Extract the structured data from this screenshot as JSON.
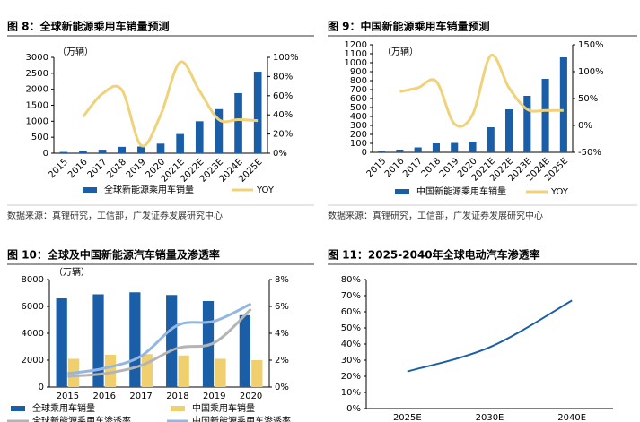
{
  "chart_data": [
    {
      "type": "bar",
      "title": "图 8：全球新能源乘用车销量预测",
      "unit": "（万辆）",
      "categories": [
        "2015",
        "2016",
        "2017",
        "2018",
        "2019",
        "2020",
        "2021E",
        "2022E",
        "2023E",
        "2024E",
        "2025E"
      ],
      "series": [
        {
          "name": "全球新能源乘用车销量",
          "type": "bar",
          "color": "#1b5ea8",
          "values": [
            40,
            70,
            110,
            200,
            210,
            300,
            600,
            1000,
            1380,
            1880,
            2550
          ]
        },
        {
          "name": "YOY",
          "type": "line",
          "axis": "y2",
          "color": "#f0d27a",
          "values": [
            null,
            38,
            62,
            66,
            8,
            40,
            95,
            65,
            35,
            35,
            34
          ]
        }
      ],
      "ylim": [
        0,
        3000
      ],
      "yticks": [
        0,
        500,
        1000,
        1500,
        2000,
        2500,
        3000
      ],
      "y2lim": [
        0,
        100
      ],
      "y2ticks": [
        {
          "value": 0,
          "label": "0%"
        },
        {
          "value": 20,
          "label": "20%"
        },
        {
          "value": 40,
          "label": "40%"
        },
        {
          "value": 60,
          "label": "60%"
        },
        {
          "value": 80,
          "label": "80%"
        },
        {
          "value": 100,
          "label": "100%"
        }
      ],
      "source": "数据来源：真锂研究，工信部，广发证券发展研究中心"
    },
    {
      "type": "bar",
      "title": "图 9：中国新能源乘用车销量预测",
      "unit": "（万辆）",
      "categories": [
        "2015",
        "2016",
        "2017",
        "2018",
        "2019",
        "2020",
        "2021E",
        "2022E",
        "2023E",
        "2024E",
        "2025E"
      ],
      "series": [
        {
          "name": "中国新能源乘用车销量",
          "type": "bar",
          "color": "#1b5ea8",
          "values": [
            18,
            30,
            55,
            100,
            105,
            120,
            280,
            480,
            630,
            820,
            1060
          ]
        },
        {
          "name": "YOY",
          "type": "line",
          "axis": "y2",
          "color": "#f0d27a",
          "values": [
            null,
            63,
            70,
            82,
            3,
            20,
            130,
            70,
            30,
            28,
            28
          ]
        }
      ],
      "ylim": [
        0,
        1200
      ],
      "yticks": [
        0,
        100,
        200,
        300,
        400,
        500,
        600,
        700,
        800,
        900,
        1000,
        1100,
        1200
      ],
      "y2lim": [
        -50,
        150
      ],
      "y2ticks": [
        {
          "value": -50,
          "label": "-50%"
        },
        {
          "value": 0,
          "label": "0%"
        },
        {
          "value": 50,
          "label": "50%"
        },
        {
          "value": 100,
          "label": "100%"
        },
        {
          "value": 150,
          "label": "150%"
        }
      ],
      "source": "数据来源：真锂研究，工信部，广发证券发展研究中心"
    },
    {
      "type": "bar",
      "title": "图 10：全球及中国新能源汽车销量及渗透率",
      "unit": "（万辆）",
      "categories": [
        "2015",
        "2016",
        "2017",
        "2018",
        "2019",
        "2020"
      ],
      "series": [
        {
          "name": "全球乘用车销量",
          "type": "bar",
          "color": "#1b5ea8",
          "values": [
            6600,
            6900,
            7050,
            6850,
            6400,
            5350
          ]
        },
        {
          "name": "中国乘用车销量",
          "type": "bar",
          "color": "#f0cf6e",
          "values": [
            2100,
            2400,
            2450,
            2350,
            2100,
            2000
          ]
        },
        {
          "name": "全球新能源乘用车渗透率",
          "type": "line",
          "axis": "y2",
          "color": "#b4b4b4",
          "values": [
            0.8,
            1.0,
            1.6,
            2.9,
            3.3,
            5.8
          ]
        },
        {
          "name": "中国新能源乘用车渗透率",
          "type": "line",
          "axis": "y2",
          "color": "#94b6e3",
          "values": [
            1.0,
            1.4,
            2.3,
            4.6,
            4.9,
            6.2
          ]
        }
      ],
      "ylim": [
        0,
        8000
      ],
      "yticks": [
        0,
        2000,
        4000,
        6000,
        8000
      ],
      "y2lim": [
        0,
        8
      ],
      "y2ticks": [
        {
          "value": 0,
          "label": "0%"
        },
        {
          "value": 2,
          "label": "2%"
        },
        {
          "value": 4,
          "label": "4%"
        },
        {
          "value": 6,
          "label": "6%"
        },
        {
          "value": 8,
          "label": "8%"
        }
      ]
    },
    {
      "type": "line",
      "title": "图 11：2025-2040年全球电动汽车渗透率",
      "categories": [
        "2025E",
        "2030E",
        "2040E"
      ],
      "series": [
        {
          "name": "全球电动汽车渗透率",
          "type": "line",
          "color": "#1b5ea8",
          "values": [
            23,
            38,
            67
          ]
        }
      ],
      "ylim": [
        0,
        80
      ],
      "yticks": [
        {
          "value": 0,
          "label": "0%"
        },
        {
          "value": 10,
          "label": "10%"
        },
        {
          "value": 20,
          "label": "20%"
        },
        {
          "value": 30,
          "label": "30%"
        },
        {
          "value": 40,
          "label": "40%"
        },
        {
          "value": 50,
          "label": "50%"
        },
        {
          "value": 60,
          "label": "60%"
        },
        {
          "value": 70,
          "label": "70%"
        },
        {
          "value": 80,
          "label": "80%"
        }
      ]
    }
  ]
}
